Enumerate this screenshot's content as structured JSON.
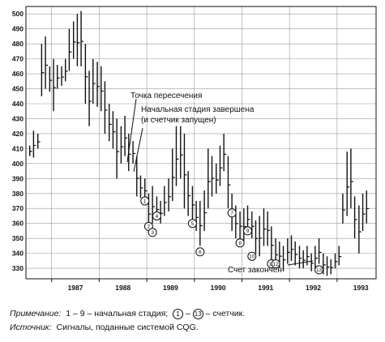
{
  "chart_data": {
    "type": "bar",
    "subtype": "ohlc-price-bars",
    "y_ticks": [
      "500",
      "490",
      "480",
      "470",
      "460",
      "450",
      "440",
      "430",
      "420",
      "410",
      "400",
      "390",
      "380",
      "370",
      "360",
      "350",
      "340",
      "330"
    ],
    "x_ticks": [
      "1987",
      "1988",
      "1989",
      "1990",
      "1991",
      "1992",
      "1993"
    ],
    "ylim": [
      323,
      505
    ],
    "grid": true,
    "bars": [
      {
        "x": 1986.5,
        "h": 412,
        "l": 405
      },
      {
        "x": 1986.58,
        "h": 422,
        "l": 404
      },
      {
        "x": 1986.67,
        "h": 420,
        "l": 410
      },
      {
        "x": 1986.75,
        "h": 480,
        "l": 445
      },
      {
        "x": 1986.83,
        "h": 485,
        "l": 450
      },
      {
        "x": 1986.92,
        "h": 465,
        "l": 448
      },
      {
        "x": 1987.0,
        "h": 470,
        "l": 435
      },
      {
        "x": 1987.08,
        "h": 466,
        "l": 450
      },
      {
        "x": 1987.17,
        "h": 465,
        "l": 452
      },
      {
        "x": 1987.25,
        "h": 470,
        "l": 455
      },
      {
        "x": 1987.33,
        "h": 490,
        "l": 462
      },
      {
        "x": 1987.42,
        "h": 495,
        "l": 470
      },
      {
        "x": 1987.5,
        "h": 500,
        "l": 465
      },
      {
        "x": 1987.58,
        "h": 502,
        "l": 465
      },
      {
        "x": 1987.67,
        "h": 480,
        "l": 440
      },
      {
        "x": 1987.75,
        "h": 462,
        "l": 425
      },
      {
        "x": 1987.83,
        "h": 470,
        "l": 440
      },
      {
        "x": 1987.92,
        "h": 468,
        "l": 438
      },
      {
        "x": 1988.0,
        "h": 465,
        "l": 435
      },
      {
        "x": 1988.08,
        "h": 455,
        "l": 420
      },
      {
        "x": 1988.17,
        "h": 440,
        "l": 415
      },
      {
        "x": 1988.25,
        "h": 435,
        "l": 410
      },
      {
        "x": 1988.33,
        "h": 430,
        "l": 390
      },
      {
        "x": 1988.42,
        "h": 425,
        "l": 400
      },
      {
        "x": 1988.5,
        "h": 432,
        "l": 405
      },
      {
        "x": 1988.58,
        "h": 420,
        "l": 395
      },
      {
        "x": 1988.67,
        "h": 415,
        "l": 400
      },
      {
        "x": 1988.75,
        "h": 405,
        "l": 378
      },
      {
        "x": 1988.83,
        "h": 392,
        "l": 377
      },
      {
        "x": 1988.92,
        "h": 390,
        "l": 375
      },
      {
        "x": 1989.0,
        "h": 380,
        "l": 355
      },
      {
        "x": 1989.08,
        "h": 385,
        "l": 360
      },
      {
        "x": 1989.17,
        "h": 378,
        "l": 362
      },
      {
        "x": 1989.25,
        "h": 375,
        "l": 360
      },
      {
        "x": 1989.33,
        "h": 385,
        "l": 365
      },
      {
        "x": 1989.42,
        "h": 390,
        "l": 368
      },
      {
        "x": 1989.5,
        "h": 410,
        "l": 375
      },
      {
        "x": 1989.58,
        "h": 425,
        "l": 385
      },
      {
        "x": 1989.67,
        "h": 425,
        "l": 390
      },
      {
        "x": 1989.75,
        "h": 420,
        "l": 370
      },
      {
        "x": 1989.83,
        "h": 395,
        "l": 365
      },
      {
        "x": 1989.92,
        "h": 385,
        "l": 362
      },
      {
        "x": 1990.0,
        "h": 375,
        "l": 355
      },
      {
        "x": 1990.08,
        "h": 375,
        "l": 345
      },
      {
        "x": 1990.17,
        "h": 382,
        "l": 355
      },
      {
        "x": 1990.25,
        "h": 410,
        "l": 370
      },
      {
        "x": 1990.33,
        "h": 405,
        "l": 378
      },
      {
        "x": 1990.42,
        "h": 400,
        "l": 380
      },
      {
        "x": 1990.5,
        "h": 412,
        "l": 385
      },
      {
        "x": 1990.58,
        "h": 420,
        "l": 395
      },
      {
        "x": 1990.67,
        "h": 405,
        "l": 370
      },
      {
        "x": 1990.75,
        "h": 380,
        "l": 355
      },
      {
        "x": 1990.83,
        "h": 372,
        "l": 350
      },
      {
        "x": 1990.92,
        "h": 368,
        "l": 350
      },
      {
        "x": 1991.0,
        "h": 370,
        "l": 348
      },
      {
        "x": 1991.08,
        "h": 372,
        "l": 355
      },
      {
        "x": 1991.17,
        "h": 368,
        "l": 350
      },
      {
        "x": 1991.25,
        "h": 362,
        "l": 340
      },
      {
        "x": 1991.33,
        "h": 365,
        "l": 338
      },
      {
        "x": 1991.42,
        "h": 370,
        "l": 345
      },
      {
        "x": 1991.5,
        "h": 368,
        "l": 345
      },
      {
        "x": 1991.58,
        "h": 358,
        "l": 335
      },
      {
        "x": 1991.67,
        "h": 350,
        "l": 330
      },
      {
        "x": 1991.75,
        "h": 348,
        "l": 330
      },
      {
        "x": 1991.83,
        "h": 345,
        "l": 328
      },
      {
        "x": 1991.92,
        "h": 350,
        "l": 333
      },
      {
        "x": 1992.0,
        "h": 352,
        "l": 335
      },
      {
        "x": 1992.08,
        "h": 348,
        "l": 332
      },
      {
        "x": 1992.17,
        "h": 345,
        "l": 330
      },
      {
        "x": 1992.25,
        "h": 342,
        "l": 330
      },
      {
        "x": 1992.33,
        "h": 345,
        "l": 332
      },
      {
        "x": 1992.42,
        "h": 340,
        "l": 328
      },
      {
        "x": 1992.5,
        "h": 345,
        "l": 330
      },
      {
        "x": 1992.58,
        "h": 350,
        "l": 333
      },
      {
        "x": 1992.67,
        "h": 340,
        "l": 326
      },
      {
        "x": 1992.75,
        "h": 338,
        "l": 325
      },
      {
        "x": 1992.83,
        "h": 336,
        "l": 326
      },
      {
        "x": 1992.92,
        "h": 340,
        "l": 330
      },
      {
        "x": 1993.0,
        "h": 345,
        "l": 332
      },
      {
        "x": 1993.08,
        "h": 380,
        "l": 360
      },
      {
        "x": 1993.17,
        "h": 408,
        "l": 365
      },
      {
        "x": 1993.25,
        "h": 410,
        "l": 370
      },
      {
        "x": 1993.33,
        "h": 378,
        "l": 350
      },
      {
        "x": 1993.42,
        "h": 372,
        "l": 340
      },
      {
        "x": 1993.5,
        "h": 380,
        "l": 355
      },
      {
        "x": 1993.58,
        "h": 382,
        "l": 360
      }
    ],
    "counters": [
      {
        "label": "1",
        "x": 1988.92,
        "y": 375
      },
      {
        "label": "2",
        "x": 1989.0,
        "y": 358
      },
      {
        "label": "3",
        "x": 1989.08,
        "y": 354
      },
      {
        "label": "4",
        "x": 1989.17,
        "y": 365
      },
      {
        "label": "5",
        "x": 1989.92,
        "y": 360
      },
      {
        "label": "6",
        "x": 1990.08,
        "y": 341
      },
      {
        "label": "7",
        "x": 1990.75,
        "y": 367
      },
      {
        "label": "8",
        "x": 1990.92,
        "y": 347
      },
      {
        "label": "9",
        "x": 1991.08,
        "y": 355
      },
      {
        "label": "10",
        "x": 1991.17,
        "y": 338
      },
      {
        "label": "11",
        "x": 1991.58,
        "y": 333
      },
      {
        "label": "12",
        "x": 1991.67,
        "y": 333
      },
      {
        "label": "13",
        "x": 1992.58,
        "y": 329
      }
    ],
    "annotations": [
      {
        "text": "Точка пересечения"
      },
      {
        "text": "Начальная стадия завершена"
      },
      {
        "text": "(и счетчик запущен)"
      },
      {
        "text": "Счет закончен"
      }
    ]
  },
  "notes": {
    "note_label": "Примечание:",
    "note_range": "1 – 9 – начальная стадия;",
    "note_c1": "1",
    "note_dash": "–",
    "note_c13": "13",
    "note_tail": "– счетчик.",
    "source_label": "Источник:",
    "source_text": "Сигналы, поданные системой CQG."
  }
}
